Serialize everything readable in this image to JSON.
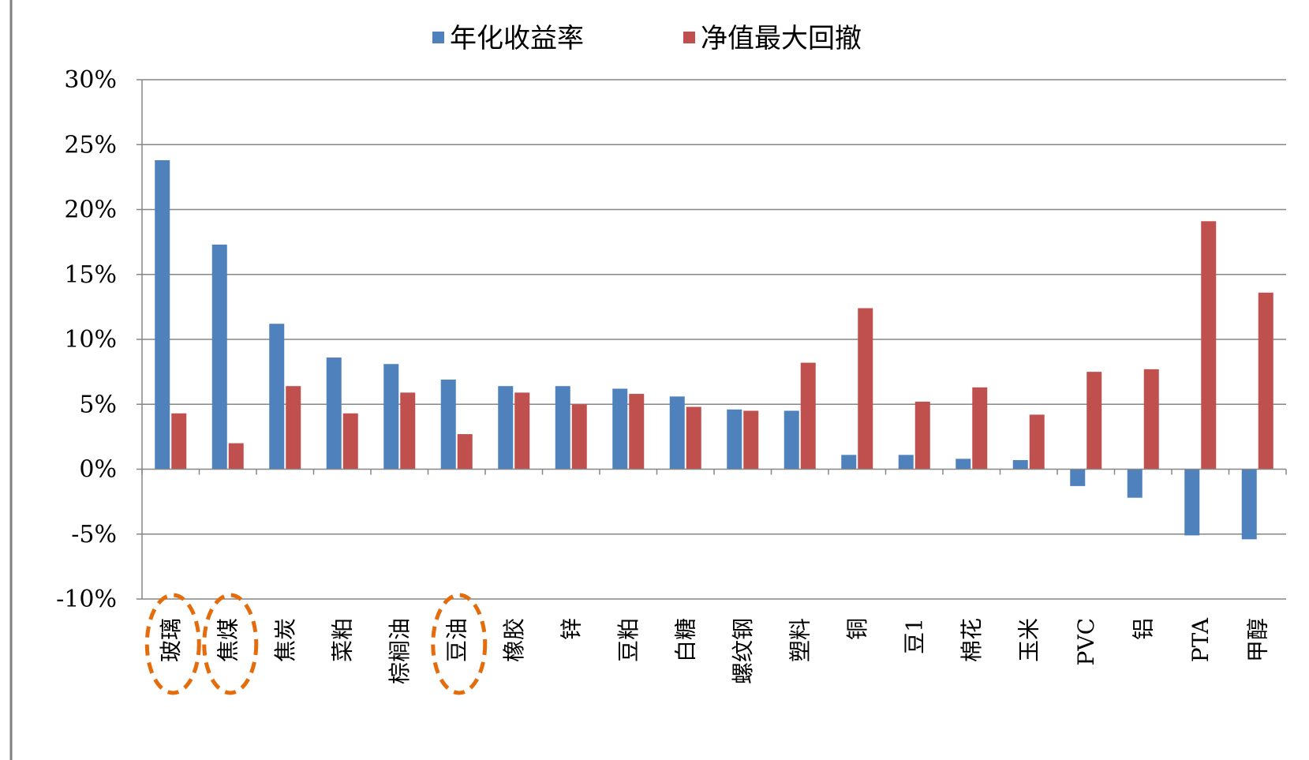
{
  "chart_data": {
    "type": "bar",
    "categories": [
      "玻璃",
      "焦煤",
      "焦炭",
      "菜粕",
      "棕榈油",
      "豆油",
      "橡胶",
      "锌",
      "豆粕",
      "白糖",
      "螺纹钢",
      "塑料",
      "铜",
      "豆1",
      "棉花",
      "玉米",
      "PVC",
      "铝",
      "PTA",
      "甲醇"
    ],
    "series": [
      {
        "name": "年化收益率",
        "color": "#4F81BD",
        "values": [
          23.8,
          17.3,
          11.2,
          8.6,
          8.1,
          6.9,
          6.4,
          6.4,
          6.2,
          5.6,
          4.6,
          4.5,
          1.1,
          1.1,
          0.8,
          0.7,
          -1.3,
          -2.2,
          -5.1,
          -5.4
        ]
      },
      {
        "name": "净值最大回撤",
        "color": "#C0504D",
        "values": [
          4.3,
          2.0,
          6.4,
          4.3,
          5.9,
          2.7,
          5.9,
          5.0,
          5.8,
          4.8,
          4.5,
          8.2,
          12.4,
          5.2,
          6.3,
          4.2,
          7.5,
          7.7,
          19.1,
          13.6
        ]
      }
    ],
    "y_ticks": [
      "30%",
      "25%",
      "20%",
      "15%",
      "10%",
      "5%",
      "0%",
      "-5%",
      "-10%"
    ],
    "ylim": [
      -10,
      30
    ],
    "grid": true,
    "legend_position": "top",
    "highlighted_categories": [
      "玻璃",
      "焦煤",
      "豆油"
    ],
    "highlight_color": "#E46C0A"
  }
}
